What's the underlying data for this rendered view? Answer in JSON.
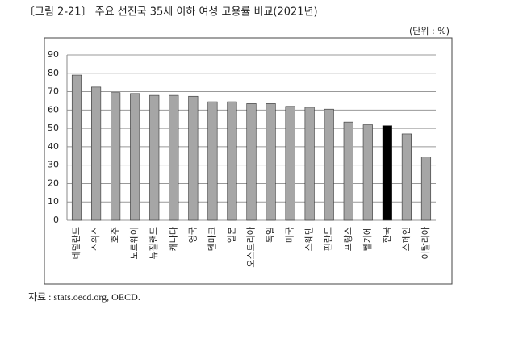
{
  "chart_data": {
    "type": "bar",
    "title": "〔그림 2-21〕 주요 선진국 35세 이하 여성 고용률 비교(2021년)",
    "unit": "(단위 : %)",
    "source": "자료 : stats.oecd.org, OECD.",
    "categories": [
      "네덜란드",
      "스위스",
      "호주",
      "노르웨이",
      "뉴질랜드",
      "캐나다",
      "영국",
      "덴마크",
      "일본",
      "오스트리아",
      "독일",
      "미국",
      "스웨덴",
      "핀란드",
      "프랑스",
      "벨기에",
      "한국",
      "스페인",
      "이탈리아"
    ],
    "values": [
      79,
      72.5,
      69.5,
      69,
      68,
      68,
      67.5,
      64.5,
      64.5,
      63.5,
      63.5,
      62,
      61.5,
      60.5,
      53.5,
      52,
      51.5,
      47,
      34.5
    ],
    "colors": [
      "#a6a6a6",
      "#a6a6a6",
      "#a6a6a6",
      "#a6a6a6",
      "#a6a6a6",
      "#a6a6a6",
      "#a6a6a6",
      "#a6a6a6",
      "#a6a6a6",
      "#a6a6a6",
      "#a6a6a6",
      "#a6a6a6",
      "#a6a6a6",
      "#a6a6a6",
      "#a6a6a6",
      "#a6a6a6",
      "#000000",
      "#a6a6a6",
      "#a6a6a6"
    ],
    "ylim": [
      0,
      90
    ],
    "yticks": [
      0,
      10,
      20,
      30,
      40,
      50,
      60,
      70,
      80,
      90
    ],
    "grid": true
  }
}
